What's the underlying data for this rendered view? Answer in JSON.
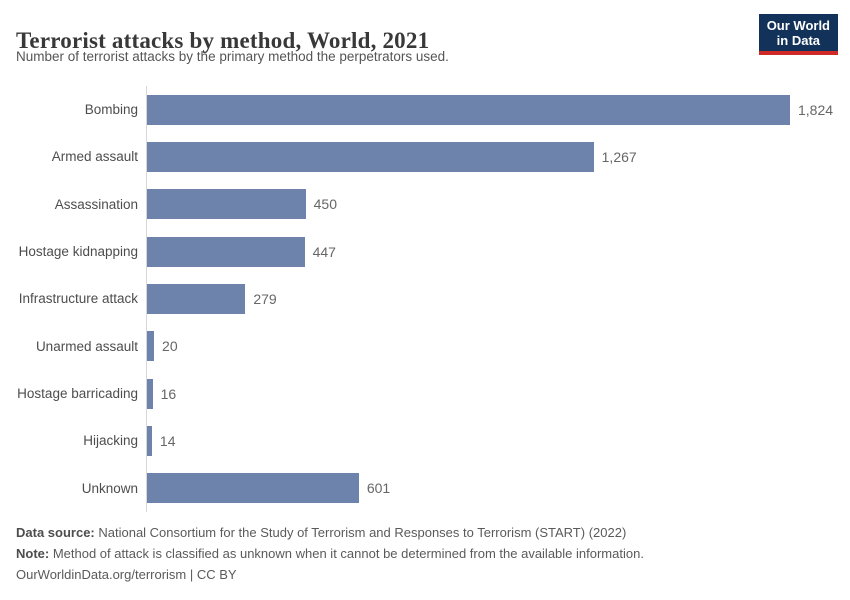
{
  "header": {
    "title": "Terrorist attacks by method, World, 2021",
    "subtitle": "Number of terrorist attacks by the primary method the perpetrators used.",
    "logo": {
      "line1": "Our World",
      "line2": "in Data"
    }
  },
  "chart_data": {
    "type": "bar",
    "orientation": "horizontal",
    "title": "Terrorist attacks by method, World, 2021",
    "xlabel": "",
    "ylabel": "",
    "grid": false,
    "xlim": [
      0,
      1824
    ],
    "categories": [
      "Bombing",
      "Armed assault",
      "Assassination",
      "Hostage kidnapping",
      "Infrastructure attack",
      "Unarmed assault",
      "Hostage barricading",
      "Hijacking",
      "Unknown"
    ],
    "values": [
      1824,
      1267,
      450,
      447,
      279,
      20,
      16,
      14,
      601
    ],
    "value_labels": [
      "1,824",
      "1,267",
      "450",
      "447",
      "279",
      "20",
      "16",
      "14",
      "601"
    ],
    "bar_color": "#6d83ac"
  },
  "footer": {
    "data_source_label": "Data source:",
    "data_source_text": " National Consortium for the Study of Terrorism and Responses to Terrorism (START) (2022)",
    "note_label": "Note:",
    "note_text": " Method of attack is classified as unknown when it cannot be determined from the available information.",
    "attribution": "OurWorldinData.org/terrorism | CC BY"
  },
  "colors": {
    "bar": "#6d83ac",
    "axis_line": "#d8d8d8",
    "logo_background": "#12325a",
    "logo_accent": "#cf2a27",
    "title_text": "#383838",
    "subtitle_text": "#555555"
  }
}
